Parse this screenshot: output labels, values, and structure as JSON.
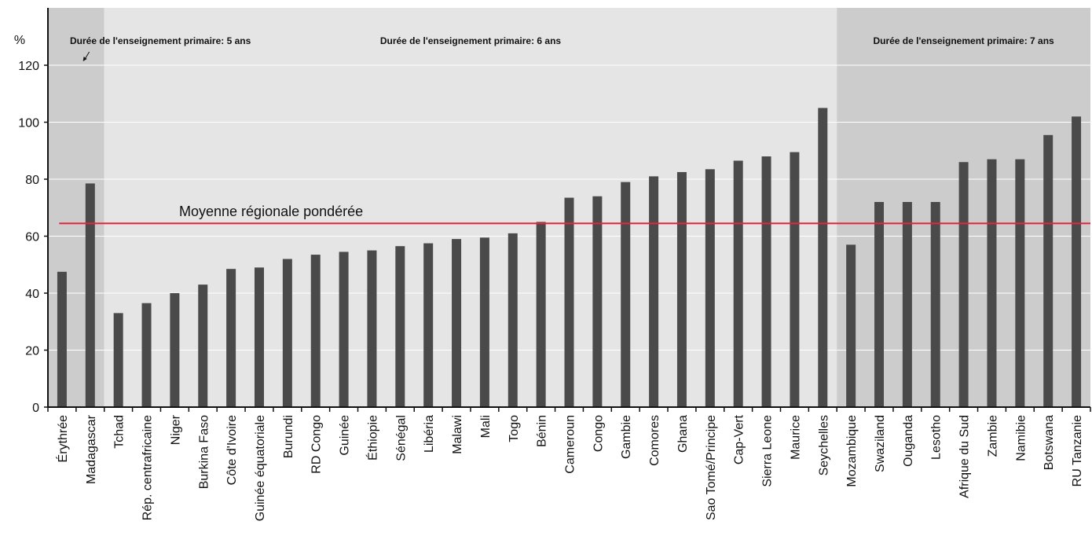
{
  "chart_data": {
    "type": "bar",
    "ylabel": "%",
    "ylim": [
      0,
      120
    ],
    "yticks": [
      0,
      20,
      40,
      60,
      80,
      100,
      120
    ],
    "grid": true,
    "categories": [
      "Érythrée",
      "Madagascar",
      "Tchad",
      "Rép. centrafricaine",
      "Niger",
      "Burkina Faso",
      "Côte d'Ivoire",
      "Guinée équatoriale",
      "Burundi",
      "RD Congo",
      "Guinée",
      "Éthiopie",
      "Sénégal",
      "Libéria",
      "Malawi",
      "Mali",
      "Togo",
      "Bénin",
      "Cameroun",
      "Congo",
      "Gambie",
      "Comores",
      "Ghana",
      "Sao Tomé/Principe",
      "Cap-Vert",
      "Sierra Leone",
      "Maurice",
      "Seychelles",
      "Mozambique",
      "Swaziland",
      "Ouganda",
      "Lesotho",
      "Afrique du Sud",
      "Zambie",
      "Namibie",
      "Botswana",
      "RU Tanzanie"
    ],
    "values": [
      47.5,
      78.5,
      33,
      36.5,
      40,
      43,
      48.5,
      49,
      52,
      53.5,
      54.5,
      55,
      56.5,
      57.5,
      59,
      59.5,
      61,
      65,
      73.5,
      74,
      79,
      81,
      82.5,
      83.5,
      86.5,
      88,
      89.5,
      105,
      57,
      72,
      72,
      72,
      86,
      87,
      87,
      95.5,
      102
    ],
    "series_color": "#4a4a4a",
    "reference_line": {
      "label": "Moyenne régionale pondérée",
      "value": 64.5,
      "color": "#e0263e"
    },
    "bands": [
      {
        "label": "Durée de l'enseignement primaire: 5 ans",
        "start": 0,
        "end": 1,
        "color": "#cccccc"
      },
      {
        "label": "Durée de l'enseignement primaire: 6 ans",
        "start": 2,
        "end": 27,
        "color": "#e5e5e5"
      },
      {
        "label": "Durée de l'enseignement primaire: 7 ans",
        "start": 28,
        "end": 36,
        "color": "#cccccc"
      }
    ]
  }
}
